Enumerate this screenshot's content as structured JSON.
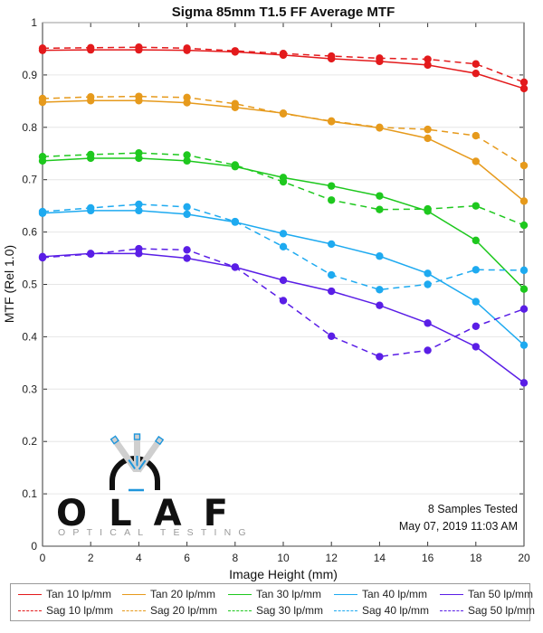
{
  "chart_data": {
    "type": "line",
    "title": "Sigma 85mm T1.5 FF Average MTF",
    "xlabel": "Image Height (mm)",
    "ylabel": "MTF (Rel 1.0)",
    "xlim": [
      0,
      20
    ],
    "ylim": [
      0,
      1
    ],
    "xticks": [
      "0",
      "2",
      "4",
      "6",
      "8",
      "10",
      "12",
      "14",
      "16",
      "18",
      "20"
    ],
    "yticks": [
      "0",
      "0.1",
      "0.2",
      "0.3",
      "0.4",
      "0.5",
      "0.6",
      "0.7",
      "0.8",
      "0.9",
      "1"
    ],
    "grid": true,
    "legend_position": "bottom",
    "x": [
      0,
      2,
      4,
      6,
      8,
      10,
      12,
      14,
      16,
      18,
      20
    ],
    "series": [
      {
        "name": "Tan 10 lp/mm",
        "color": "#e31a1c",
        "style": "solid",
        "values": [
          0.947,
          0.948,
          0.948,
          0.947,
          0.944,
          0.938,
          0.931,
          0.926,
          0.919,
          0.903,
          0.874
        ]
      },
      {
        "name": "Sag 10 lp/mm",
        "color": "#e31a1c",
        "style": "dashed",
        "values": [
          0.951,
          0.952,
          0.953,
          0.951,
          0.946,
          0.941,
          0.936,
          0.932,
          0.93,
          0.921,
          0.886
        ]
      },
      {
        "name": "Tan 20 lp/mm",
        "color": "#e69a1c",
        "style": "solid",
        "values": [
          0.848,
          0.851,
          0.851,
          0.847,
          0.838,
          0.827,
          0.811,
          0.799,
          0.779,
          0.735,
          0.659
        ]
      },
      {
        "name": "Sag 20 lp/mm",
        "color": "#e69a1c",
        "style": "dashed",
        "values": [
          0.855,
          0.858,
          0.859,
          0.857,
          0.845,
          0.826,
          0.812,
          0.8,
          0.796,
          0.784,
          0.727
        ]
      },
      {
        "name": "Tan 30 lp/mm",
        "color": "#1ec81e",
        "style": "solid",
        "values": [
          0.736,
          0.741,
          0.741,
          0.736,
          0.725,
          0.704,
          0.688,
          0.669,
          0.64,
          0.584,
          0.491
        ]
      },
      {
        "name": "Sag 30 lp/mm",
        "color": "#1ec81e",
        "style": "dashed",
        "values": [
          0.744,
          0.748,
          0.751,
          0.747,
          0.728,
          0.696,
          0.661,
          0.643,
          0.644,
          0.65,
          0.613
        ]
      },
      {
        "name": "Tan 40 lp/mm",
        "color": "#1eaaf0",
        "style": "solid",
        "values": [
          0.636,
          0.641,
          0.641,
          0.634,
          0.619,
          0.597,
          0.577,
          0.554,
          0.521,
          0.467,
          0.384
        ]
      },
      {
        "name": "Sag 40 lp/mm",
        "color": "#1eaaf0",
        "style": "dashed",
        "values": [
          0.639,
          0.646,
          0.653,
          0.648,
          0.62,
          0.572,
          0.518,
          0.49,
          0.5,
          0.528,
          0.527
        ]
      },
      {
        "name": "Tan 50 lp/mm",
        "color": "#5a1ee6",
        "style": "solid",
        "values": [
          0.553,
          0.559,
          0.559,
          0.55,
          0.533,
          0.508,
          0.487,
          0.46,
          0.426,
          0.381,
          0.312
        ]
      },
      {
        "name": "Sag 50 lp/mm",
        "color": "#5a1ee6",
        "style": "dashed",
        "values": [
          0.551,
          0.558,
          0.568,
          0.566,
          0.533,
          0.469,
          0.401,
          0.362,
          0.374,
          0.42,
          0.453
        ]
      }
    ]
  },
  "legend": {
    "items": [
      {
        "label": "Tan 10 lp/mm",
        "color": "#e31a1c",
        "style": "solid"
      },
      {
        "label": "Tan 20 lp/mm",
        "color": "#e69a1c",
        "style": "solid"
      },
      {
        "label": "Tan 30 lp/mm",
        "color": "#1ec81e",
        "style": "solid"
      },
      {
        "label": "Tan 40 lp/mm",
        "color": "#1eaaf0",
        "style": "solid"
      },
      {
        "label": "Tan 50 lp/mm",
        "color": "#5a1ee6",
        "style": "solid"
      },
      {
        "label": "Sag 10 lp/mm",
        "color": "#e31a1c",
        "style": "dashed"
      },
      {
        "label": "Sag 20 lp/mm",
        "color": "#e69a1c",
        "style": "dashed"
      },
      {
        "label": "Sag 30 lp/mm",
        "color": "#1ec81e",
        "style": "dashed"
      },
      {
        "label": "Sag 40 lp/mm",
        "color": "#1eaaf0",
        "style": "dashed"
      },
      {
        "label": "Sag 50 lp/mm",
        "color": "#5a1ee6",
        "style": "dashed"
      }
    ]
  },
  "annotation": {
    "samples": "8 Samples Tested",
    "timestamp": "May 07, 2019 11:03 AM"
  },
  "logo": {
    "letters": [
      "O",
      "L",
      "A",
      "F"
    ],
    "subtitle": "OPTICAL TESTING",
    "accent_color": "#1e96dc"
  }
}
